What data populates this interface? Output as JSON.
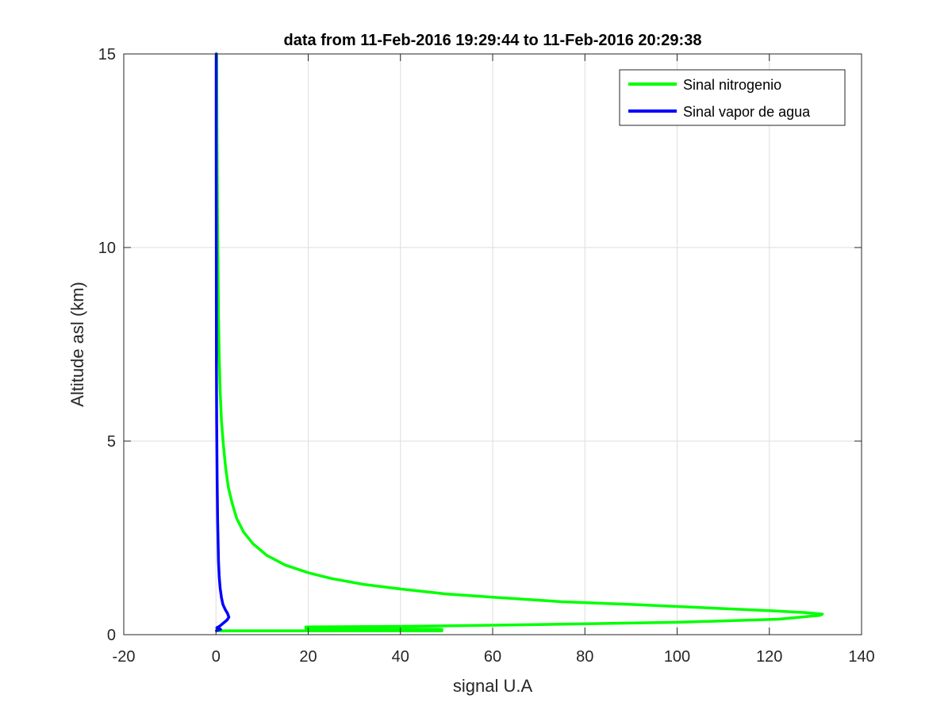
{
  "chart_data": {
    "type": "line",
    "title": "data from 11-Feb-2016 19:29:44 to 11-Feb-2016 20:29:38",
    "xlabel": "signal U.A",
    "ylabel": "Altitude asl (km)",
    "xlim": [
      -20,
      140
    ],
    "ylim": [
      0,
      15
    ],
    "xticks": [
      -20,
      0,
      20,
      40,
      60,
      80,
      100,
      120,
      140
    ],
    "yticks": [
      0,
      5,
      10,
      15
    ],
    "grid": true,
    "legend_position": "top-right",
    "series": [
      {
        "name": "Sinal nitrogenio",
        "color": "#00ff00",
        "points": [
          [
            0.6,
            0.1
          ],
          [
            49,
            0.1
          ],
          [
            20,
            0.12
          ],
          [
            28,
            0.13
          ],
          [
            49,
            0.14
          ],
          [
            19.5,
            0.16
          ],
          [
            19.5,
            0.2
          ],
          [
            45,
            0.22
          ],
          [
            70,
            0.26
          ],
          [
            100,
            0.32
          ],
          [
            122,
            0.4
          ],
          [
            131,
            0.5
          ],
          [
            131.5,
            0.53
          ],
          [
            128,
            0.57
          ],
          [
            120,
            0.62
          ],
          [
            105,
            0.7
          ],
          [
            90,
            0.78
          ],
          [
            75,
            0.85
          ],
          [
            60,
            0.97
          ],
          [
            50,
            1.05
          ],
          [
            40,
            1.18
          ],
          [
            32,
            1.3
          ],
          [
            25,
            1.45
          ],
          [
            20,
            1.6
          ],
          [
            15,
            1.8
          ],
          [
            11,
            2.05
          ],
          [
            8,
            2.35
          ],
          [
            6,
            2.65
          ],
          [
            4.5,
            3.0
          ],
          [
            3.5,
            3.4
          ],
          [
            2.7,
            3.8
          ],
          [
            2.1,
            4.3
          ],
          [
            1.6,
            4.9
          ],
          [
            1.2,
            5.5
          ],
          [
            0.9,
            6.3
          ],
          [
            0.7,
            7.2
          ],
          [
            0.55,
            8.2
          ],
          [
            0.45,
            9.3
          ],
          [
            0.35,
            10.5
          ],
          [
            0.28,
            11.7
          ],
          [
            0.22,
            12.9
          ],
          [
            0.18,
            14.0
          ],
          [
            0.15,
            15.0
          ]
        ]
      },
      {
        "name": "Sinal vapor de agua",
        "color": "#0000ff",
        "points": [
          [
            0.1,
            0.1
          ],
          [
            1.0,
            0.14
          ],
          [
            0.2,
            0.18
          ],
          [
            0.8,
            0.22
          ],
          [
            1.6,
            0.3
          ],
          [
            2.4,
            0.38
          ],
          [
            2.8,
            0.45
          ],
          [
            2.5,
            0.55
          ],
          [
            2.0,
            0.65
          ],
          [
            1.5,
            0.78
          ],
          [
            1.2,
            0.95
          ],
          [
            0.9,
            1.2
          ],
          [
            0.7,
            1.5
          ],
          [
            0.55,
            1.9
          ],
          [
            0.45,
            2.4
          ],
          [
            0.35,
            3.0
          ],
          [
            0.25,
            4.0
          ],
          [
            0.15,
            5.5
          ],
          [
            0.1,
            7.0
          ],
          [
            0.08,
            9.0
          ],
          [
            0.06,
            11.0
          ],
          [
            0.05,
            13.0
          ],
          [
            0.05,
            15.0
          ]
        ]
      }
    ]
  }
}
